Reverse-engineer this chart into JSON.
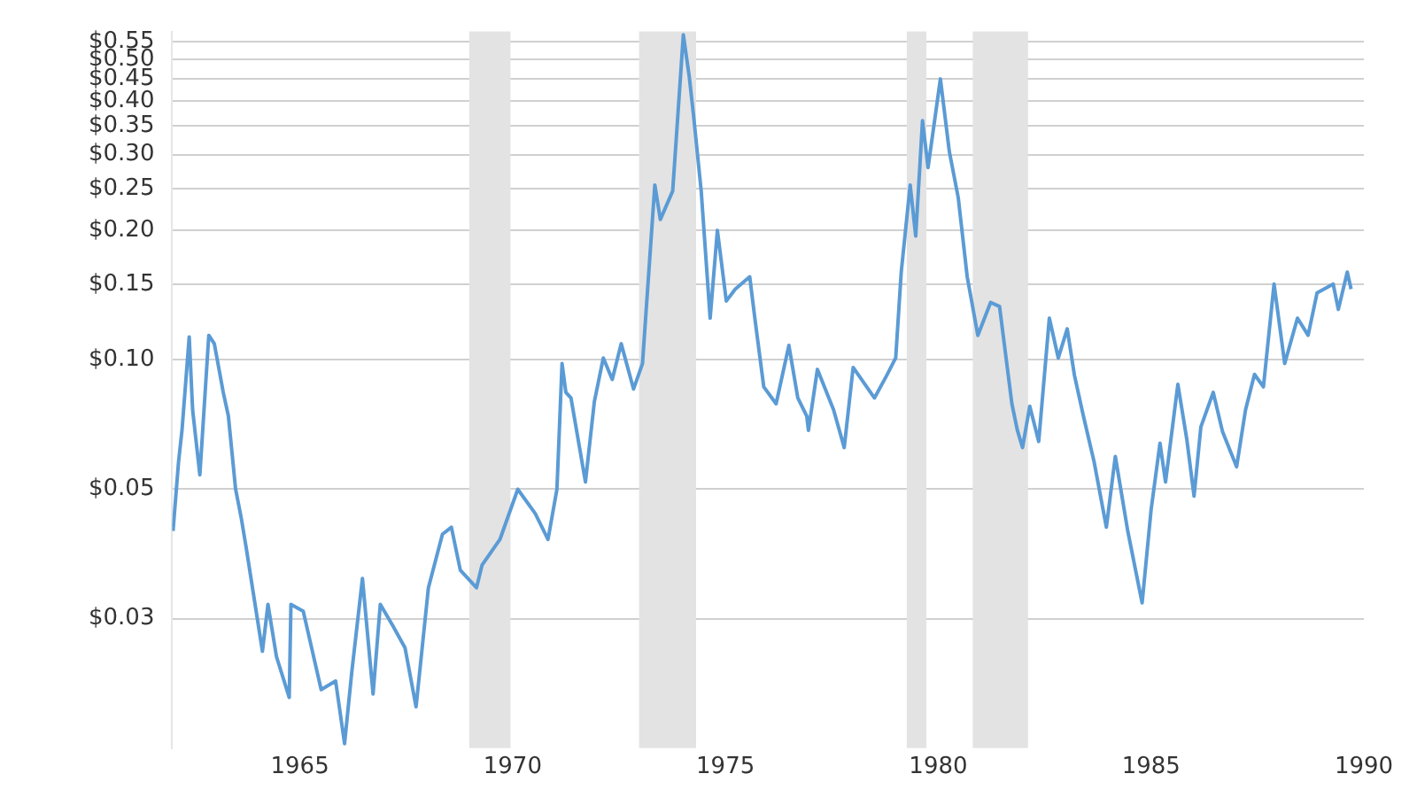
{
  "chart_data": {
    "type": "line",
    "log": "y",
    "grid": "y",
    "legend": false,
    "marker": "none",
    "line_style": "solid",
    "xlim": [
      1962,
      1990
    ],
    "xticks": [
      1965,
      1970,
      1975,
      1980,
      1985,
      1990
    ],
    "ylim": [
      0.0125,
      0.58
    ],
    "yticks": [
      {
        "value": 0.025,
        "label": "$0.03"
      },
      {
        "value": 0.05,
        "label": "$0.05"
      },
      {
        "value": 0.1,
        "label": "$0.10"
      },
      {
        "value": 0.15,
        "label": "$0.15"
      },
      {
        "value": 0.2,
        "label": "$0.20"
      },
      {
        "value": 0.25,
        "label": "$0.25"
      },
      {
        "value": 0.3,
        "label": "$0.30"
      },
      {
        "value": 0.35,
        "label": "$0.35"
      },
      {
        "value": 0.4,
        "label": "$0.40"
      },
      {
        "value": 0.45,
        "label": "$0.45"
      },
      {
        "value": 0.5,
        "label": "$0.50"
      },
      {
        "value": 0.55,
        "label": "$0.55"
      }
    ],
    "bands": [
      {
        "axis": "x",
        "from": 1968.98,
        "to": 1969.95,
        "label": null,
        "color": "#e3e3e3"
      },
      {
        "axis": "x",
        "from": 1972.97,
        "to": 1974.31,
        "label": null,
        "color": "#e3e3e3"
      },
      {
        "axis": "x",
        "from": 1979.26,
        "to": 1979.72,
        "label": null,
        "color": "#e3e3e3"
      },
      {
        "axis": "x",
        "from": 1980.81,
        "to": 1982.11,
        "label": null,
        "color": "#e3e3e3"
      }
    ],
    "series": [
      {
        "color": "#5b9bd5",
        "x": [
          1962.02,
          1962.15,
          1962.23,
          1962.4,
          1962.48,
          1962.65,
          1962.86,
          1962.99,
          1963.2,
          1963.32,
          1963.49,
          1963.62,
          1963.74,
          1964.12,
          1964.25,
          1964.45,
          1964.75,
          1964.79,
          1965.08,
          1965.5,
          1965.84,
          1966.05,
          1966.22,
          1966.47,
          1966.72,
          1966.89,
          1967.18,
          1967.47,
          1967.73,
          1968.02,
          1968.35,
          1968.56,
          1968.77,
          1969.15,
          1969.28,
          1969.7,
          1970.12,
          1970.53,
          1970.83,
          1971.04,
          1971.16,
          1971.25,
          1971.37,
          1971.71,
          1971.92,
          1972.13,
          1972.34,
          1972.55,
          1972.84,
          1973.05,
          1973.34,
          1973.47,
          1973.76,
          1974.01,
          1974.15,
          1974.25,
          1974.43,
          1974.64,
          1974.81,
          1975.02,
          1975.23,
          1975.57,
          1975.69,
          1975.9,
          1976.19,
          1976.49,
          1976.7,
          1976.91,
          1976.95,
          1977.16,
          1977.54,
          1977.79,
          1978.0,
          1978.5,
          1978.79,
          1979.0,
          1979.13,
          1979.34,
          1979.47,
          1979.63,
          1979.76,
          1980.05,
          1980.26,
          1980.47,
          1980.68,
          1980.93,
          1981.23,
          1981.44,
          1981.73,
          1981.86,
          1981.98,
          1982.15,
          1982.36,
          1982.61,
          1982.82,
          1983.03,
          1983.2,
          1983.41,
          1983.66,
          1983.95,
          1984.16,
          1984.45,
          1984.79,
          1985.0,
          1985.21,
          1985.34,
          1985.63,
          1985.84,
          1986.01,
          1986.17,
          1986.46,
          1986.68,
          1987.01,
          1987.22,
          1987.43,
          1987.64,
          1987.89,
          1988.14,
          1988.44,
          1988.69,
          1988.9,
          1989.28,
          1989.4,
          1989.61,
          1989.7
        ],
        "values": [
          0.04,
          0.058,
          0.0685,
          0.113,
          0.0765,
          0.054,
          0.114,
          0.109,
          0.084,
          0.074,
          0.05,
          0.043,
          0.0365,
          0.021,
          0.027,
          0.0204,
          0.0164,
          0.027,
          0.026,
          0.0171,
          0.0179,
          0.0128,
          0.0188,
          0.031,
          0.0167,
          0.027,
          0.0241,
          0.0214,
          0.0156,
          0.0295,
          0.0393,
          0.0408,
          0.0324,
          0.0295,
          0.0333,
          0.0382,
          0.05,
          0.0439,
          0.0382,
          0.05,
          0.098,
          0.084,
          0.0815,
          0.052,
          0.08,
          0.101,
          0.09,
          0.109,
          0.0855,
          0.098,
          0.255,
          0.212,
          0.247,
          0.57,
          0.455,
          0.37,
          0.247,
          0.125,
          0.2,
          0.137,
          0.146,
          0.156,
          0.125,
          0.0865,
          0.079,
          0.108,
          0.0815,
          0.074,
          0.0685,
          0.095,
          0.0765,
          0.0625,
          0.096,
          0.0815,
          0.092,
          0.101,
          0.16,
          0.255,
          0.194,
          0.36,
          0.28,
          0.45,
          0.305,
          0.238,
          0.156,
          0.114,
          0.136,
          0.133,
          0.079,
          0.0685,
          0.0625,
          0.078,
          0.0646,
          0.125,
          0.101,
          0.118,
          0.092,
          0.074,
          0.058,
          0.0408,
          0.0596,
          0.0401,
          0.0272,
          0.0447,
          0.064,
          0.052,
          0.0877,
          0.0653,
          0.0482,
          0.0698,
          0.084,
          0.068,
          0.0564,
          0.0765,
          0.0925,
          0.0865,
          0.15,
          0.098,
          0.125,
          0.114,
          0.143,
          0.15,
          0.131,
          0.16,
          0.146
        ]
      }
    ]
  }
}
